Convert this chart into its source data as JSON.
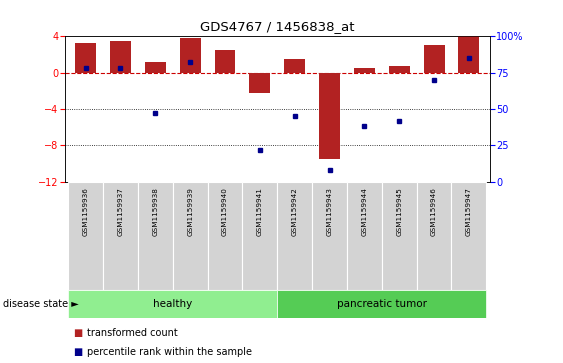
{
  "title": "GDS4767 / 1456838_at",
  "samples": [
    "GSM1159936",
    "GSM1159937",
    "GSM1159938",
    "GSM1159939",
    "GSM1159940",
    "GSM1159941",
    "GSM1159942",
    "GSM1159943",
    "GSM1159944",
    "GSM1159945",
    "GSM1159946",
    "GSM1159947"
  ],
  "red_bars": [
    3.3,
    3.5,
    1.2,
    3.8,
    2.5,
    -2.2,
    1.5,
    -9.5,
    0.5,
    0.7,
    3.0,
    4.0
  ],
  "blue_dots": [
    78,
    78,
    47,
    82,
    null,
    22,
    45,
    8,
    38,
    42,
    70,
    85
  ],
  "ylim_left": [
    -12,
    4
  ],
  "ylim_right": [
    0,
    100
  ],
  "yticks_left": [
    -12,
    -8,
    -4,
    0,
    4
  ],
  "yticks_right": [
    0,
    25,
    50,
    75,
    100
  ],
  "bar_color": "#B22222",
  "dot_color": "#00008B",
  "zero_line_color": "#CC0000",
  "grid_color": "#000000",
  "bg_color": "#FFFFFF",
  "healthy_color": "#90EE90",
  "tumor_color": "#55CC55",
  "healthy_indices": [
    0,
    1,
    2,
    3,
    4,
    5
  ],
  "tumor_indices": [
    6,
    7,
    8,
    9,
    10,
    11
  ],
  "healthy_label": "healthy",
  "tumor_label": "pancreatic tumor",
  "legend_red": "transformed count",
  "legend_blue": "percentile rank within the sample",
  "disease_state_label": "disease state"
}
